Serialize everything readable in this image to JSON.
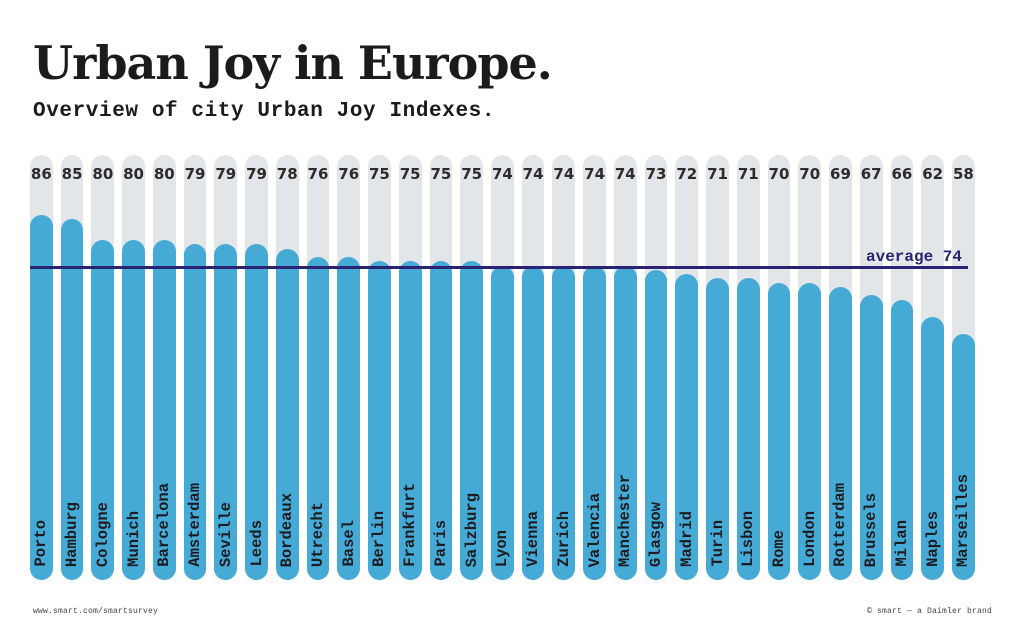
{
  "header": {
    "title": "Urban Joy in Europe.",
    "subtitle": "Overview of city Urban Joy Indexes."
  },
  "chart_data": {
    "type": "bar",
    "orientation": "vertical",
    "title": "Urban Joy in Europe.",
    "subtitle": "Overview of city Urban Joy Indexes.",
    "categories": [
      "Porto",
      "Hamburg",
      "Cologne",
      "Munich",
      "Barcelona",
      "Amsterdam",
      "Seville",
      "Leeds",
      "Bordeaux",
      "Utrecht",
      "Basel",
      "Berlin",
      "Frankfurt",
      "Paris",
      "Salzburg",
      "Lyon",
      "Vienna",
      "Zurich",
      "Valencia",
      "Manchester",
      "Glasgow",
      "Madrid",
      "Turin",
      "Lisbon",
      "Rome",
      "London",
      "Rotterdam",
      "Brussels",
      "Milan",
      "Naples",
      "Marseilles"
    ],
    "values": [
      86,
      85,
      80,
      80,
      80,
      79,
      79,
      79,
      78,
      76,
      76,
      75,
      75,
      75,
      75,
      74,
      74,
      74,
      74,
      74,
      73,
      72,
      71,
      71,
      70,
      70,
      69,
      67,
      66,
      62,
      58
    ],
    "value_range": [
      0,
      100
    ],
    "grid": false,
    "legend": "none",
    "average": {
      "value": 74,
      "label": "average 74"
    },
    "colors": {
      "bar": "#45aad5",
      "track": "#e3e6e9",
      "average_line": "#2a2272",
      "value_label": "#2c2c2f",
      "city_label": "#1c1c20",
      "title": "#1b1b1d"
    }
  },
  "footer": {
    "left": "www.smart.com/smartsurvey",
    "right": "© smart — a Daimler brand"
  }
}
